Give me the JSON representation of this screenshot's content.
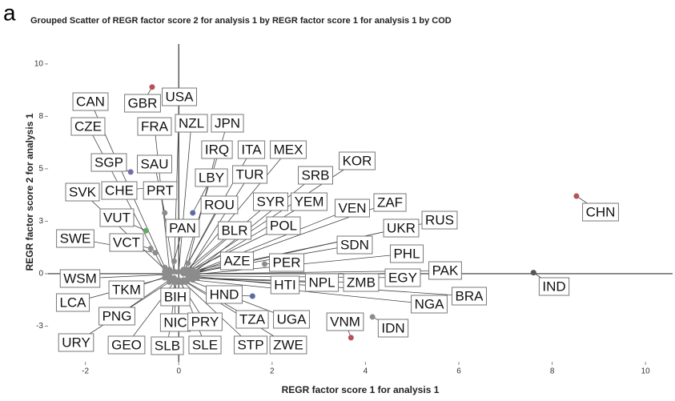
{
  "chart_data": {
    "type": "scatter",
    "panel_label": "a",
    "title": "Grouped Scatter of REGR factor score   2 for analysis 1 by REGR factor score   1 for analysis 1 by COD",
    "x_label": "REGR factor score   1 for analysis 1",
    "y_label": "REGR factor score   2 for analysis 1",
    "xlim": [
      -2.8,
      10.58
    ],
    "ylim": [
      -4.2,
      10.95
    ],
    "xticks": [
      -2,
      0,
      2,
      4,
      6,
      8,
      10
    ],
    "yticks": [
      10,
      {
        "value": 7.5,
        "label": "8"
      },
      5,
      {
        "value": 2.5,
        "label": "3"
      },
      0,
      {
        "value": -2.5,
        "label": "-3"
      }
    ],
    "reference_lines": {
      "x": 0,
      "y": 0
    },
    "color": "#8c8c8c",
    "points": [
      {
        "name": "CAN",
        "x": -0.3,
        "y": 0.3
      },
      {
        "name": "GBR",
        "x": -0.57,
        "y": 8.9,
        "color": "#b5525a"
      },
      {
        "name": "USA",
        "x": -0.1,
        "y": 0.1
      },
      {
        "name": "CZE",
        "x": -0.3,
        "y": 0.1
      },
      {
        "name": "FRA",
        "x": -0.2,
        "y": 0.2
      },
      {
        "name": "NZL",
        "x": 0.0,
        "y": 0.1
      },
      {
        "name": "JPN",
        "x": 0.1,
        "y": 0.2
      },
      {
        "name": "IRQ",
        "x": 0.2,
        "y": 0.5
      },
      {
        "name": "ITA",
        "x": 0.1,
        "y": 0.1
      },
      {
        "name": "MEX",
        "x": 0.2,
        "y": 0.2
      },
      {
        "name": "SGP",
        "x": -1.03,
        "y": 4.85,
        "color": "#7a6aa8"
      },
      {
        "name": "SAU",
        "x": -0.3,
        "y": 2.9
      },
      {
        "name": "KOR",
        "x": 0.3,
        "y": 0.2
      },
      {
        "name": "SVK",
        "x": -0.2,
        "y": 0.0
      },
      {
        "name": "CHE",
        "x": -0.6,
        "y": 4.1
      },
      {
        "name": "PRT",
        "x": -0.1,
        "y": 0.1
      },
      {
        "name": "LBY",
        "x": 0.3,
        "y": 2.9,
        "color": "#5a6aa8"
      },
      {
        "name": "TUR",
        "x": 0.2,
        "y": 0.1
      },
      {
        "name": "SRB",
        "x": 0.3,
        "y": 0.0
      },
      {
        "name": "ROU",
        "x": 0.1,
        "y": 0.1
      },
      {
        "name": "SYR",
        "x": 0.2,
        "y": 0.1
      },
      {
        "name": "YEM",
        "x": 0.3,
        "y": 0.1
      },
      {
        "name": "VEN",
        "x": 0.3,
        "y": 0.05
      },
      {
        "name": "ZAF",
        "x": 0.4,
        "y": 0.1
      },
      {
        "name": "VUT",
        "x": -0.7,
        "y": 2.05,
        "color": "#6aa86a"
      },
      {
        "name": "RUS",
        "x": 0.4,
        "y": 0.1
      },
      {
        "name": "CHN",
        "x": 8.52,
        "y": 3.7,
        "color": "#b5525a"
      },
      {
        "name": "SWE",
        "x": -0.5,
        "y": 1.0
      },
      {
        "name": "VCT",
        "x": -0.6,
        "y": 1.2
      },
      {
        "name": "PAN",
        "x": -0.1,
        "y": 0.6
      },
      {
        "name": "BLR",
        "x": 0.1,
        "y": 0.05
      },
      {
        "name": "POL",
        "x": 0.2,
        "y": 0.1
      },
      {
        "name": "UKR",
        "x": 0.3,
        "y": 0.0
      },
      {
        "name": "SDN",
        "x": 0.2,
        "y": 0.0
      },
      {
        "name": "PHL",
        "x": 0.3,
        "y": -0.05
      },
      {
        "name": "AZE",
        "x": 0.1,
        "y": 0.0
      },
      {
        "name": "PER",
        "x": 1.84,
        "y": 0.46
      },
      {
        "name": "PAK",
        "x": 0.4,
        "y": 0.0
      },
      {
        "name": "WSM",
        "x": -0.3,
        "y": -0.05
      },
      {
        "name": "EGY",
        "x": 0.3,
        "y": -0.1
      },
      {
        "name": "TKM",
        "x": -0.2,
        "y": -0.1
      },
      {
        "name": "HTI",
        "x": 0.2,
        "y": -0.1
      },
      {
        "name": "NPL",
        "x": 0.2,
        "y": -0.2
      },
      {
        "name": "ZMB",
        "x": 0.3,
        "y": -0.2
      },
      {
        "name": "HND",
        "x": 1.58,
        "y": -1.07,
        "color": "#5a6aa8"
      },
      {
        "name": "BRA",
        "x": 0.4,
        "y": -0.2
      },
      {
        "name": "IND",
        "x": 7.6,
        "y": 0.05,
        "color": "#555555"
      },
      {
        "name": "LCA",
        "x": -0.3,
        "y": -0.2
      },
      {
        "name": "BIH",
        "x": -0.1,
        "y": -0.2
      },
      {
        "name": "NGA",
        "x": 0.3,
        "y": -0.3
      },
      {
        "name": "PNG",
        "x": -0.2,
        "y": -0.3
      },
      {
        "name": "NIC",
        "x": -0.1,
        "y": -0.3
      },
      {
        "name": "PRY",
        "x": 0.0,
        "y": -0.3
      },
      {
        "name": "TZA",
        "x": 0.1,
        "y": -0.3
      },
      {
        "name": "UGA",
        "x": 0.2,
        "y": -0.3
      },
      {
        "name": "VNM",
        "x": 3.69,
        "y": -3.05,
        "color": "#b5525a"
      },
      {
        "name": "IDN",
        "x": 4.15,
        "y": -2.06
      },
      {
        "name": "URY",
        "x": -0.2,
        "y": -0.4
      },
      {
        "name": "GEO",
        "x": -0.1,
        "y": -0.4
      },
      {
        "name": "SLB",
        "x": -0.05,
        "y": -0.4
      },
      {
        "name": "SLE",
        "x": 0.05,
        "y": -0.4
      },
      {
        "name": "STP",
        "x": 0.1,
        "y": -0.4
      },
      {
        "name": "ZWE",
        "x": 0.15,
        "y": -0.4
      }
    ]
  }
}
